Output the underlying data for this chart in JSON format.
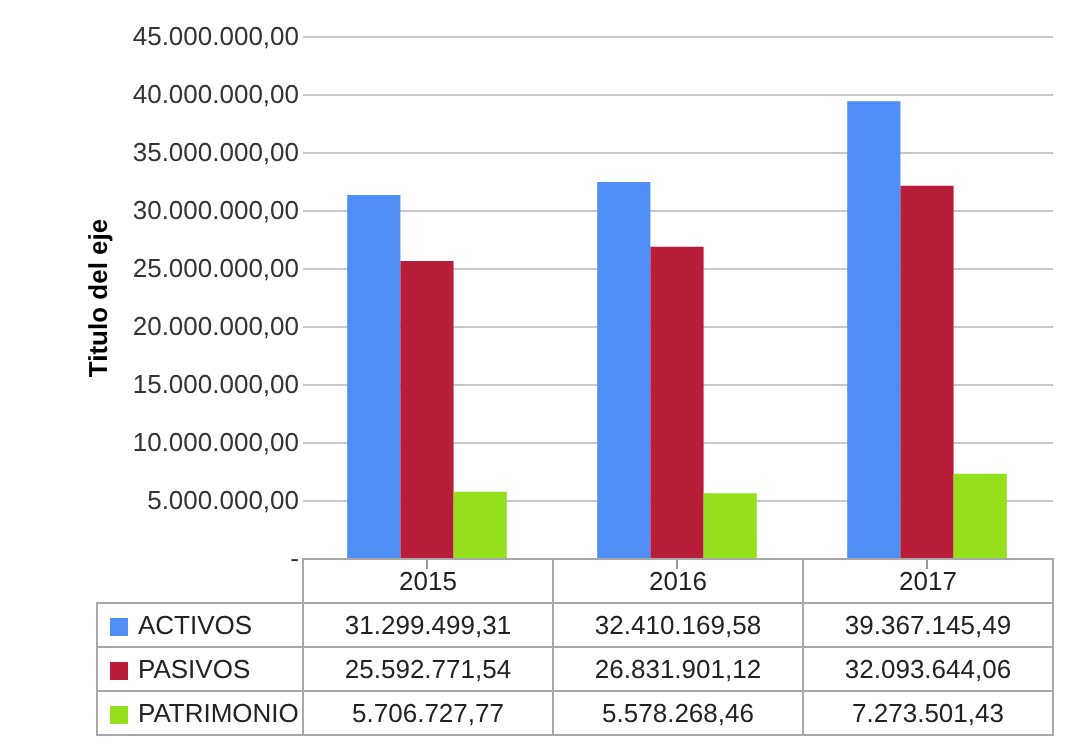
{
  "chart_data": {
    "type": "bar",
    "ylabel": "Titulo del eje",
    "categories": [
      "2015",
      "2016",
      "2017"
    ],
    "series": [
      {
        "name": "ACTIVOS",
        "color": "#4f8ff5",
        "values": [
          31299499.31,
          32410169.58,
          39367145.49
        ],
        "value_labels": [
          "31.299.499,31",
          "32.410.169,58",
          "39.367.145,49"
        ]
      },
      {
        "name": "PASIVOS",
        "color": "#b81e3a",
        "values": [
          25592771.54,
          26831901.12,
          32093644.06
        ],
        "value_labels": [
          "25.592.771,54",
          "26.831.901,12",
          "32.093.644,06"
        ]
      },
      {
        "name": "PATRIMONIO",
        "color": "#94e01c",
        "values": [
          5706727.77,
          5578268.46,
          7273501.43
        ],
        "value_labels": [
          "5.706.727,77",
          "5.578.268,46",
          "7.273.501,43"
        ]
      }
    ],
    "ylim": [
      0,
      45000000
    ],
    "yticks": [
      {
        "value": 0,
        "label": "-"
      },
      {
        "value": 5000000,
        "label": "5.000.000,00"
      },
      {
        "value": 10000000,
        "label": "10.000.000,00"
      },
      {
        "value": 15000000,
        "label": "15.000.000,00"
      },
      {
        "value": 20000000,
        "label": "20.000.000,00"
      },
      {
        "value": 25000000,
        "label": "25.000.000,00"
      },
      {
        "value": 30000000,
        "label": "30.000.000,00"
      },
      {
        "value": 35000000,
        "label": "35.000.000,00"
      },
      {
        "value": 40000000,
        "label": "40.000.000,00"
      },
      {
        "value": 45000000,
        "label": "45.000.000,00"
      }
    ],
    "grid": "y",
    "legend": "bottom",
    "tick_labels": "y"
  }
}
